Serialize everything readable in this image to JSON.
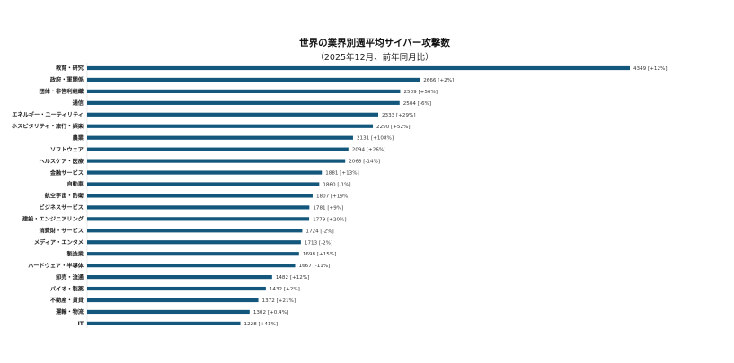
{
  "chart_data": {
    "type": "bar",
    "orientation": "horizontal",
    "title": "世界の業界別週平均サイバー攻撃数",
    "subtitle": "（2025年12月、前年同月比）",
    "xlabel": "",
    "ylabel": "",
    "xlim": [
      0,
      4349
    ],
    "grid": false,
    "bar_color": "#13587c",
    "categories": [
      "教育・研究",
      "政府・軍関係",
      "団体・非営利組織",
      "通信",
      "エネルギー・ユーティリティ",
      "ホスピタリティ・旅行・娯楽",
      "農業",
      "ソフトウェア",
      "ヘルスケア・医療",
      "金融サービス",
      "自動車",
      "航空宇宙・防衛",
      "ビジネスサービス",
      "建設・エンジニアリング",
      "消費財・サービス",
      "メディア・エンタメ",
      "製造業",
      "ハードウェア・半導体",
      "卸売・流通",
      "バイオ・製薬",
      "不動産・賃貸",
      "運輸・物流",
      "IT"
    ],
    "values": [
      4349,
      2666,
      2509,
      2504,
      2333,
      2290,
      2131,
      2094,
      2068,
      1881,
      1860,
      1807,
      1781,
      1779,
      1724,
      1713,
      1698,
      1667,
      1482,
      1432,
      1372,
      1302,
      1228
    ],
    "changes": [
      "+12%",
      "+2%",
      "+56%",
      "-6%",
      "+29%",
      "+52%",
      "+108%",
      "+26%",
      "-14%",
      "+13%",
      "-1%",
      "+19%",
      "+9%",
      "+20%",
      "-2%",
      "-2%",
      "+15%",
      "-11%",
      "+12%",
      "+2%",
      "+21%",
      "+0.4%",
      "+41%"
    ],
    "data_labels": [
      "4349 [+12%]",
      "2666 [+2%]",
      "2509 [+56%]",
      "2504 [-6%]",
      "2333 [+29%]",
      "2290 [+52%]",
      "2131 [+108%]",
      "2094 [+26%]",
      "2068 [-14%]",
      "1881 [+13%]",
      "1860 [-1%]",
      "1807 [+19%]",
      "1781 [+9%]",
      "1779 [+20%]",
      "1724 [-2%]",
      "1713 [-2%]",
      "1698 [+15%]",
      "1667 [-11%]",
      "1482 [+12%]",
      "1432 [+2%]",
      "1372 [+21%]",
      "1302 [+0.4%]",
      "1228 [+41%]"
    ]
  }
}
